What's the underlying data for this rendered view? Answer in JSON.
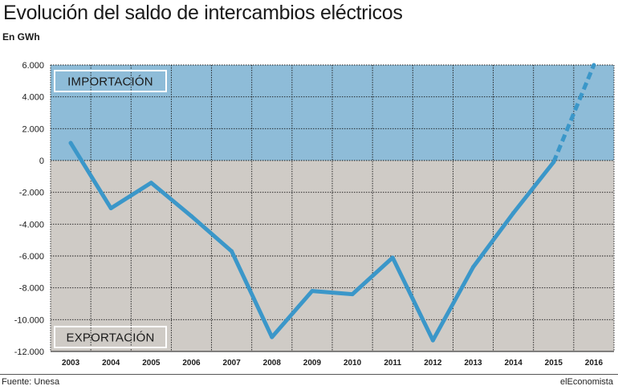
{
  "header": {
    "title": "Evolución del saldo de intercambios eléctricos",
    "subtitle": "En GWh"
  },
  "footer": {
    "source": "Fuente: Unesa",
    "brand": "elEconomista"
  },
  "chart_data": {
    "type": "line",
    "title": "Evolución del saldo de intercambios eléctricos",
    "ylabel": "En GWh",
    "xlabel": "",
    "x": [
      "2003",
      "2004",
      "2005",
      "2006",
      "2007",
      "2008",
      "2009",
      "2010",
      "2011",
      "2012",
      "2013",
      "2014",
      "2015",
      "2016"
    ],
    "y_ticks": [
      "6.000",
      "4.000",
      "2.000",
      "0",
      "-2.000",
      "-4.000",
      "-6.000",
      "-8.000",
      "-10.000",
      "-12.000"
    ],
    "ylim": [
      -12000,
      6000
    ],
    "grid": true,
    "series": [
      {
        "name": "",
        "values": [
          1100,
          -3000,
          -1400,
          -3500,
          -5700,
          -11100,
          -8200,
          -8400,
          -6100,
          -11300,
          -6700,
          -3300,
          -100,
          6000
        ],
        "projected_from_index": 12
      }
    ],
    "regions": [
      {
        "label": "IMPORTACIÓN",
        "from": 0,
        "to": 6000,
        "color": "#8ebcd8"
      },
      {
        "label": "EXPORTACIÓN",
        "from": -12000,
        "to": 0,
        "color": "#cfcbc6"
      }
    ],
    "line_color": "#3b97c9"
  }
}
